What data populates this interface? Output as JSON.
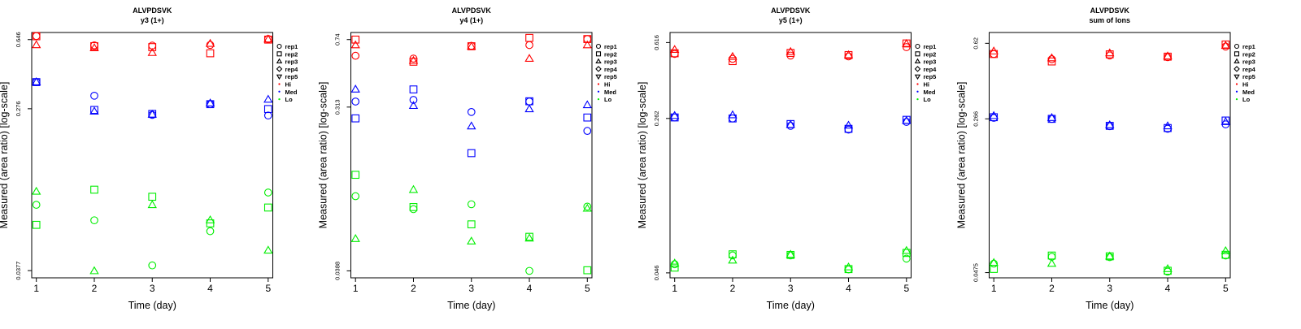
{
  "colors": {
    "Hi": "#ff0000",
    "Med": "#0000ff",
    "Lo": "#00ee00"
  },
  "legend": {
    "position": "right",
    "entries": [
      {
        "label": "rep1",
        "marker": "circle"
      },
      {
        "label": "rep2",
        "marker": "square"
      },
      {
        "label": "rep3",
        "marker": "triangle-up"
      },
      {
        "label": "rep4",
        "marker": "diamond"
      },
      {
        "label": "rep5",
        "marker": "triangle-down"
      },
      {
        "label": "Hi",
        "marker": "dot",
        "color": "#ff0000"
      },
      {
        "label": "Med",
        "marker": "dot",
        "color": "#0000ff"
      },
      {
        "label": "Lo",
        "marker": "dot",
        "color": "#00ee00"
      }
    ]
  },
  "chart_data": [
    {
      "type": "scatter",
      "title": "ALVPDSVK",
      "subtitle": "y3 (1+)",
      "xlabel": "Time (day)",
      "ylabel": "Measured (area ratio) [log-scale]",
      "yscale": "log",
      "x": [
        1,
        2,
        3,
        4,
        5
      ],
      "xlim": [
        0.92,
        5.08
      ],
      "ylim": [
        0.0345,
        0.705
      ],
      "yticks": [
        0.0377,
        0.276,
        0.646
      ],
      "grid": false,
      "series": [
        {
          "name": "rep1",
          "group": "Hi",
          "values": [
            0.675,
            0.602,
            0.6,
            0.605,
            0.651
          ]
        },
        {
          "name": "rep2",
          "group": "Hi",
          "values": [
            0.673,
            0.596,
            0.589,
            0.546,
            0.646
          ]
        },
        {
          "name": "rep3",
          "group": "Hi",
          "values": [
            0.604,
            0.582,
            0.549,
            0.614,
            0.648
          ]
        },
        {
          "name": "rep1",
          "group": "Med",
          "values": [
            0.383,
            0.324,
            0.256,
            0.292,
            0.254
          ]
        },
        {
          "name": "rep2",
          "group": "Med",
          "values": [
            0.383,
            0.272,
            0.259,
            0.292,
            0.275
          ]
        },
        {
          "name": "rep3",
          "group": "Med",
          "values": [
            0.383,
            0.267,
            0.257,
            0.295,
            0.309
          ]
        },
        {
          "name": "rep1",
          "group": "Lo",
          "values": [
            0.0847,
            0.07,
            0.0402,
            0.0612,
            0.0985
          ]
        },
        {
          "name": "rep2",
          "group": "Lo",
          "values": [
            0.0662,
            0.102,
            0.0935,
            0.0674,
            0.0819
          ]
        },
        {
          "name": "rep3",
          "group": "Lo",
          "values": [
            0.0996,
            0.0375,
            0.0845,
            0.0701,
            0.0483
          ]
        }
      ]
    },
    {
      "type": "scatter",
      "title": "ALVPDSVK",
      "subtitle": "y4 (1+)",
      "xlabel": "Time (day)",
      "ylabel": "Measured (area ratio) [log-scale]",
      "yscale": "log",
      "x": [
        1,
        2,
        3,
        4,
        5
      ],
      "xlim": [
        0.92,
        5.08
      ],
      "ylim": [
        0.0355,
        0.81
      ],
      "yticks": [
        0.0388,
        0.313,
        0.74
      ],
      "grid": false,
      "series": [
        {
          "name": "rep1",
          "group": "Hi",
          "values": [
            0.602,
            0.581,
            0.683,
            0.69,
            0.745
          ]
        },
        {
          "name": "rep2",
          "group": "Hi",
          "values": [
            0.74,
            0.558,
            0.68,
            0.756,
            0.745
          ]
        },
        {
          "name": "rep3",
          "group": "Hi",
          "values": [
            0.689,
            0.565,
            0.677,
            0.58,
            0.689
          ]
        },
        {
          "name": "rep1",
          "group": "Med",
          "values": [
            0.336,
            0.343,
            0.294,
            0.336,
            0.231
          ]
        },
        {
          "name": "rep2",
          "group": "Med",
          "values": [
            0.271,
            0.392,
            0.174,
            0.337,
            0.274
          ]
        },
        {
          "name": "rep3",
          "group": "Med",
          "values": [
            0.392,
            0.318,
            0.245,
            0.305,
            0.321
          ]
        },
        {
          "name": "rep1",
          "group": "Lo",
          "values": [
            0.1005,
            0.0852,
            0.0907,
            0.0388,
            0.088
          ]
        },
        {
          "name": "rep2",
          "group": "Lo",
          "values": [
            0.132,
            0.0875,
            0.0702,
            0.0599,
            0.0391
          ]
        },
        {
          "name": "rep3",
          "group": "Lo",
          "values": [
            0.0583,
            0.109,
            0.0565,
            0.0587,
            0.0858
          ]
        }
      ]
    },
    {
      "type": "scatter",
      "title": "ALVPDSVK",
      "subtitle": "y5 (1+)",
      "xlabel": "Time (day)",
      "ylabel": "Measured (area ratio) [log-scale]",
      "yscale": "log",
      "x": [
        1,
        2,
        3,
        4,
        5
      ],
      "xlim": [
        0.92,
        5.08
      ],
      "ylim": [
        0.0435,
        0.69
      ],
      "yticks": [
        0.046,
        0.262,
        0.616
      ],
      "grid": false,
      "series": [
        {
          "name": "rep1",
          "group": "Hi",
          "values": [
            0.542,
            0.513,
            0.532,
            0.527,
            0.585
          ]
        },
        {
          "name": "rep2",
          "group": "Hi",
          "values": [
            0.546,
            0.5,
            0.548,
            0.535,
            0.61
          ]
        },
        {
          "name": "rep3",
          "group": "Hi",
          "values": [
            0.568,
            0.525,
            0.555,
            0.535,
            0.607
          ]
        },
        {
          "name": "rep1",
          "group": "Med",
          "values": [
            0.265,
            0.262,
            0.241,
            0.231,
            0.252
          ]
        },
        {
          "name": "rep2",
          "group": "Med",
          "values": [
            0.265,
            0.262,
            0.246,
            0.233,
            0.258
          ]
        },
        {
          "name": "rep3",
          "group": "Med",
          "values": [
            0.27,
            0.272,
            0.244,
            0.242,
            0.255
          ]
        },
        {
          "name": "rep1",
          "group": "Lo",
          "values": [
            0.0507,
            0.056,
            0.056,
            0.0478,
            0.054
          ]
        },
        {
          "name": "rep2",
          "group": "Lo",
          "values": [
            0.0488,
            0.0567,
            0.0563,
            0.048,
            0.0576
          ]
        },
        {
          "name": "rep3",
          "group": "Lo",
          "values": [
            0.0512,
            0.0529,
            0.0565,
            0.049,
            0.059
          ]
        }
      ]
    },
    {
      "type": "scatter",
      "title": "ALVPDSVK",
      "subtitle": "sum of Ions",
      "xlabel": "Time (day)",
      "ylabel": "Measured (area ratio) [log-scale]",
      "yscale": "log",
      "x": [
        1,
        2,
        3,
        4,
        5
      ],
      "xlim": [
        0.92,
        5.08
      ],
      "ylim": [
        0.0448,
        0.7
      ],
      "yticks": [
        0.0475,
        0.266,
        0.62
      ],
      "grid": false,
      "series": [
        {
          "name": "rep1",
          "group": "Hi",
          "values": [
            0.55,
            0.519,
            0.541,
            0.531,
            0.598
          ]
        },
        {
          "name": "rep2",
          "group": "Hi",
          "values": [
            0.55,
            0.506,
            0.548,
            0.534,
            0.612
          ]
        },
        {
          "name": "rep3",
          "group": "Hi",
          "values": [
            0.567,
            0.525,
            0.555,
            0.536,
            0.603
          ]
        },
        {
          "name": "rep1",
          "group": "Med",
          "values": [
            0.269,
            0.266,
            0.245,
            0.238,
            0.25
          ]
        },
        {
          "name": "rep2",
          "group": "Med",
          "values": [
            0.271,
            0.266,
            0.246,
            0.24,
            0.261
          ]
        },
        {
          "name": "rep3",
          "group": "Med",
          "values": [
            0.275,
            0.269,
            0.248,
            0.245,
            0.257
          ]
        },
        {
          "name": "rep1",
          "group": "Lo",
          "values": [
            0.0525,
            0.0567,
            0.0565,
            0.048,
            0.0575
          ]
        },
        {
          "name": "rep2",
          "group": "Lo",
          "values": [
            0.0495,
            0.0575,
            0.057,
            0.0485,
            0.058
          ]
        },
        {
          "name": "rep3",
          "group": "Lo",
          "values": [
            0.053,
            0.0525,
            0.057,
            0.0495,
            0.0605
          ]
        }
      ]
    }
  ]
}
